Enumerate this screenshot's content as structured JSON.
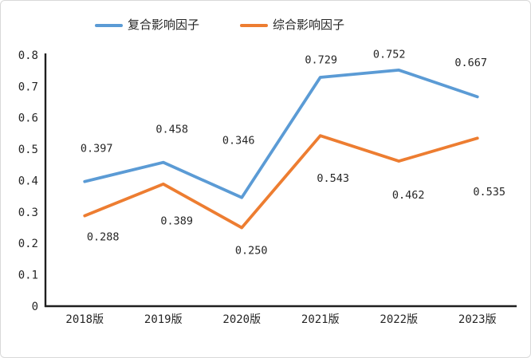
{
  "chart_data": {
    "type": "line",
    "title": "",
    "xlabel": "",
    "ylabel": "",
    "categories": [
      "2018版",
      "2019版",
      "2020版",
      "2021版",
      "2022版",
      "2023版"
    ],
    "series": [
      {
        "name": "复合影响因子",
        "color": "#5B9BD5",
        "values": [
          0.397,
          0.458,
          0.346,
          0.729,
          0.752,
          0.667
        ],
        "labels": [
          "0.397",
          "0.458",
          "0.346",
          "0.729",
          "0.752",
          "0.667"
        ],
        "label_offsets": [
          [
            15,
            -42
          ],
          [
            11,
            -42
          ],
          [
            -4,
            -72
          ],
          [
            1,
            -22
          ],
          [
            -12,
            -20
          ],
          [
            -8,
            -43
          ]
        ]
      },
      {
        "name": "综合影响因子",
        "color": "#ED7D31",
        "values": [
          0.288,
          0.389,
          0.25,
          0.543,
          0.462,
          0.535
        ],
        "labels": [
          "0.288",
          "0.389",
          "0.250",
          "0.543",
          "0.462",
          "0.535"
        ],
        "label_offsets": [
          [
            23,
            26
          ],
          [
            17,
            46
          ],
          [
            12,
            28
          ],
          [
            16,
            53
          ],
          [
            12,
            42
          ],
          [
            15,
            67
          ]
        ]
      }
    ],
    "ylim": [
      0,
      0.8
    ],
    "ytick_values": [
      0,
      0.1,
      0.2,
      0.3,
      0.4,
      0.5,
      0.6,
      0.7,
      0.8
    ],
    "ytick_labels": [
      "0",
      "0.1",
      "0.2",
      "0.3",
      "0.4",
      "0.5",
      "0.6",
      "0.7",
      "0.8"
    ],
    "grid": false,
    "legend_position": "top-left",
    "axis_color": "#1f1f1f",
    "text_color": "#262626",
    "line_width": 3.8
  }
}
